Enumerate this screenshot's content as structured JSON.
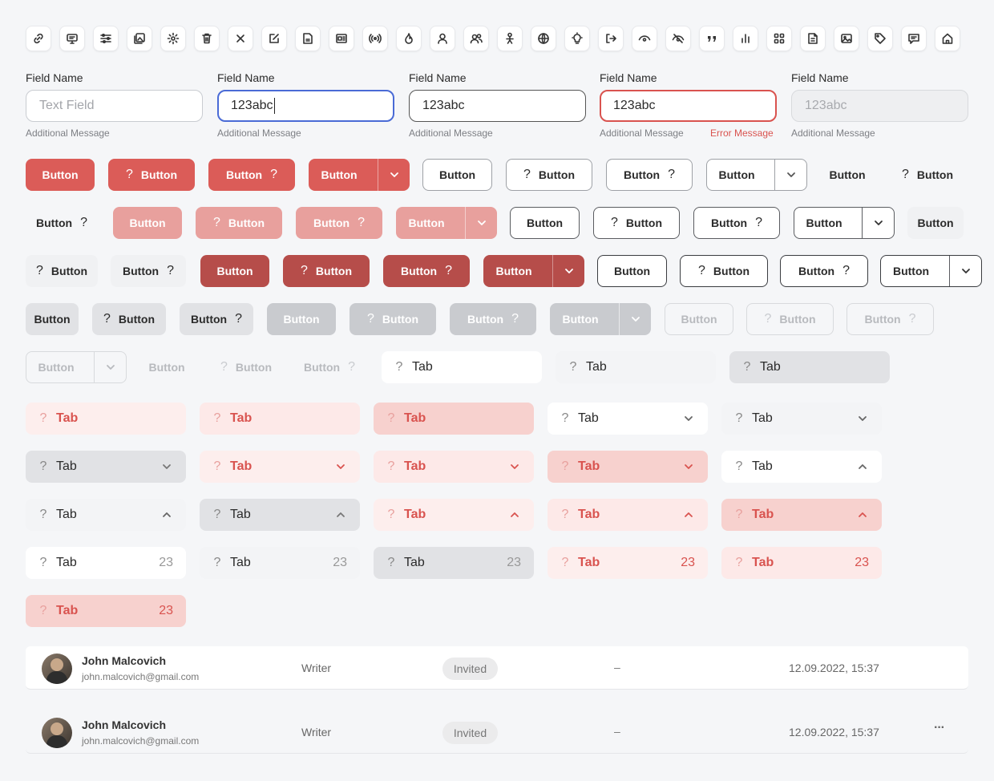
{
  "toolbar_icons": [
    "link-icon",
    "monitor-icon",
    "sliders-icon",
    "gallery-icon",
    "gear-icon",
    "trash-icon",
    "close-icon",
    "edit-icon",
    "news-icon",
    "newspaper-icon",
    "broadcast-icon",
    "fire-icon",
    "user-icon",
    "users-icon",
    "person-icon",
    "globe-icon",
    "lightbulb-icon",
    "logout-icon",
    "eye-icon",
    "eye-off-icon",
    "quote-icon",
    "bar-chart-icon",
    "grid-icon",
    "document-icon",
    "image-icon",
    "tag-icon",
    "message-icon",
    "home-icon"
  ],
  "fields": [
    {
      "label": "Field Name",
      "value": "",
      "placeholder": "Text Field",
      "message": "Additional Message",
      "error": ""
    },
    {
      "label": "Field Name",
      "value": "123abc",
      "placeholder": "",
      "message": "Additional Message",
      "error": ""
    },
    {
      "label": "Field Name",
      "value": "123abc",
      "placeholder": "",
      "message": "Additional Message",
      "error": ""
    },
    {
      "label": "Field Name",
      "value": "123abc",
      "placeholder": "",
      "message": "Additional Message",
      "error": "Error Message"
    },
    {
      "label": "Field Name",
      "value": "123abc",
      "placeholder": "",
      "message": "Additional Message",
      "error": ""
    }
  ],
  "button_label": "Button",
  "question_mark": "?",
  "tab_label": "Tab",
  "tab_count": "23",
  "colors": {
    "primary": "#db5c58",
    "primary_light": "#e8a09d",
    "primary_dark": "#b64d4a",
    "error": "#d9534f",
    "tab_pink": "#fde9e8",
    "tab_pink_active": "#f7d1ce"
  },
  "table_rows": [
    {
      "name": "John Malcovich",
      "email": "john.malcovich@gmail.com",
      "role": "Writer",
      "status": "Invited",
      "extra": "–",
      "date": "12.09.2022, 15:37",
      "more": ""
    },
    {
      "name": "John Malcovich",
      "email": "john.malcovich@gmail.com",
      "role": "Writer",
      "status": "Invited",
      "extra": "–",
      "date": "12.09.2022, 15:37",
      "more": "···"
    }
  ]
}
